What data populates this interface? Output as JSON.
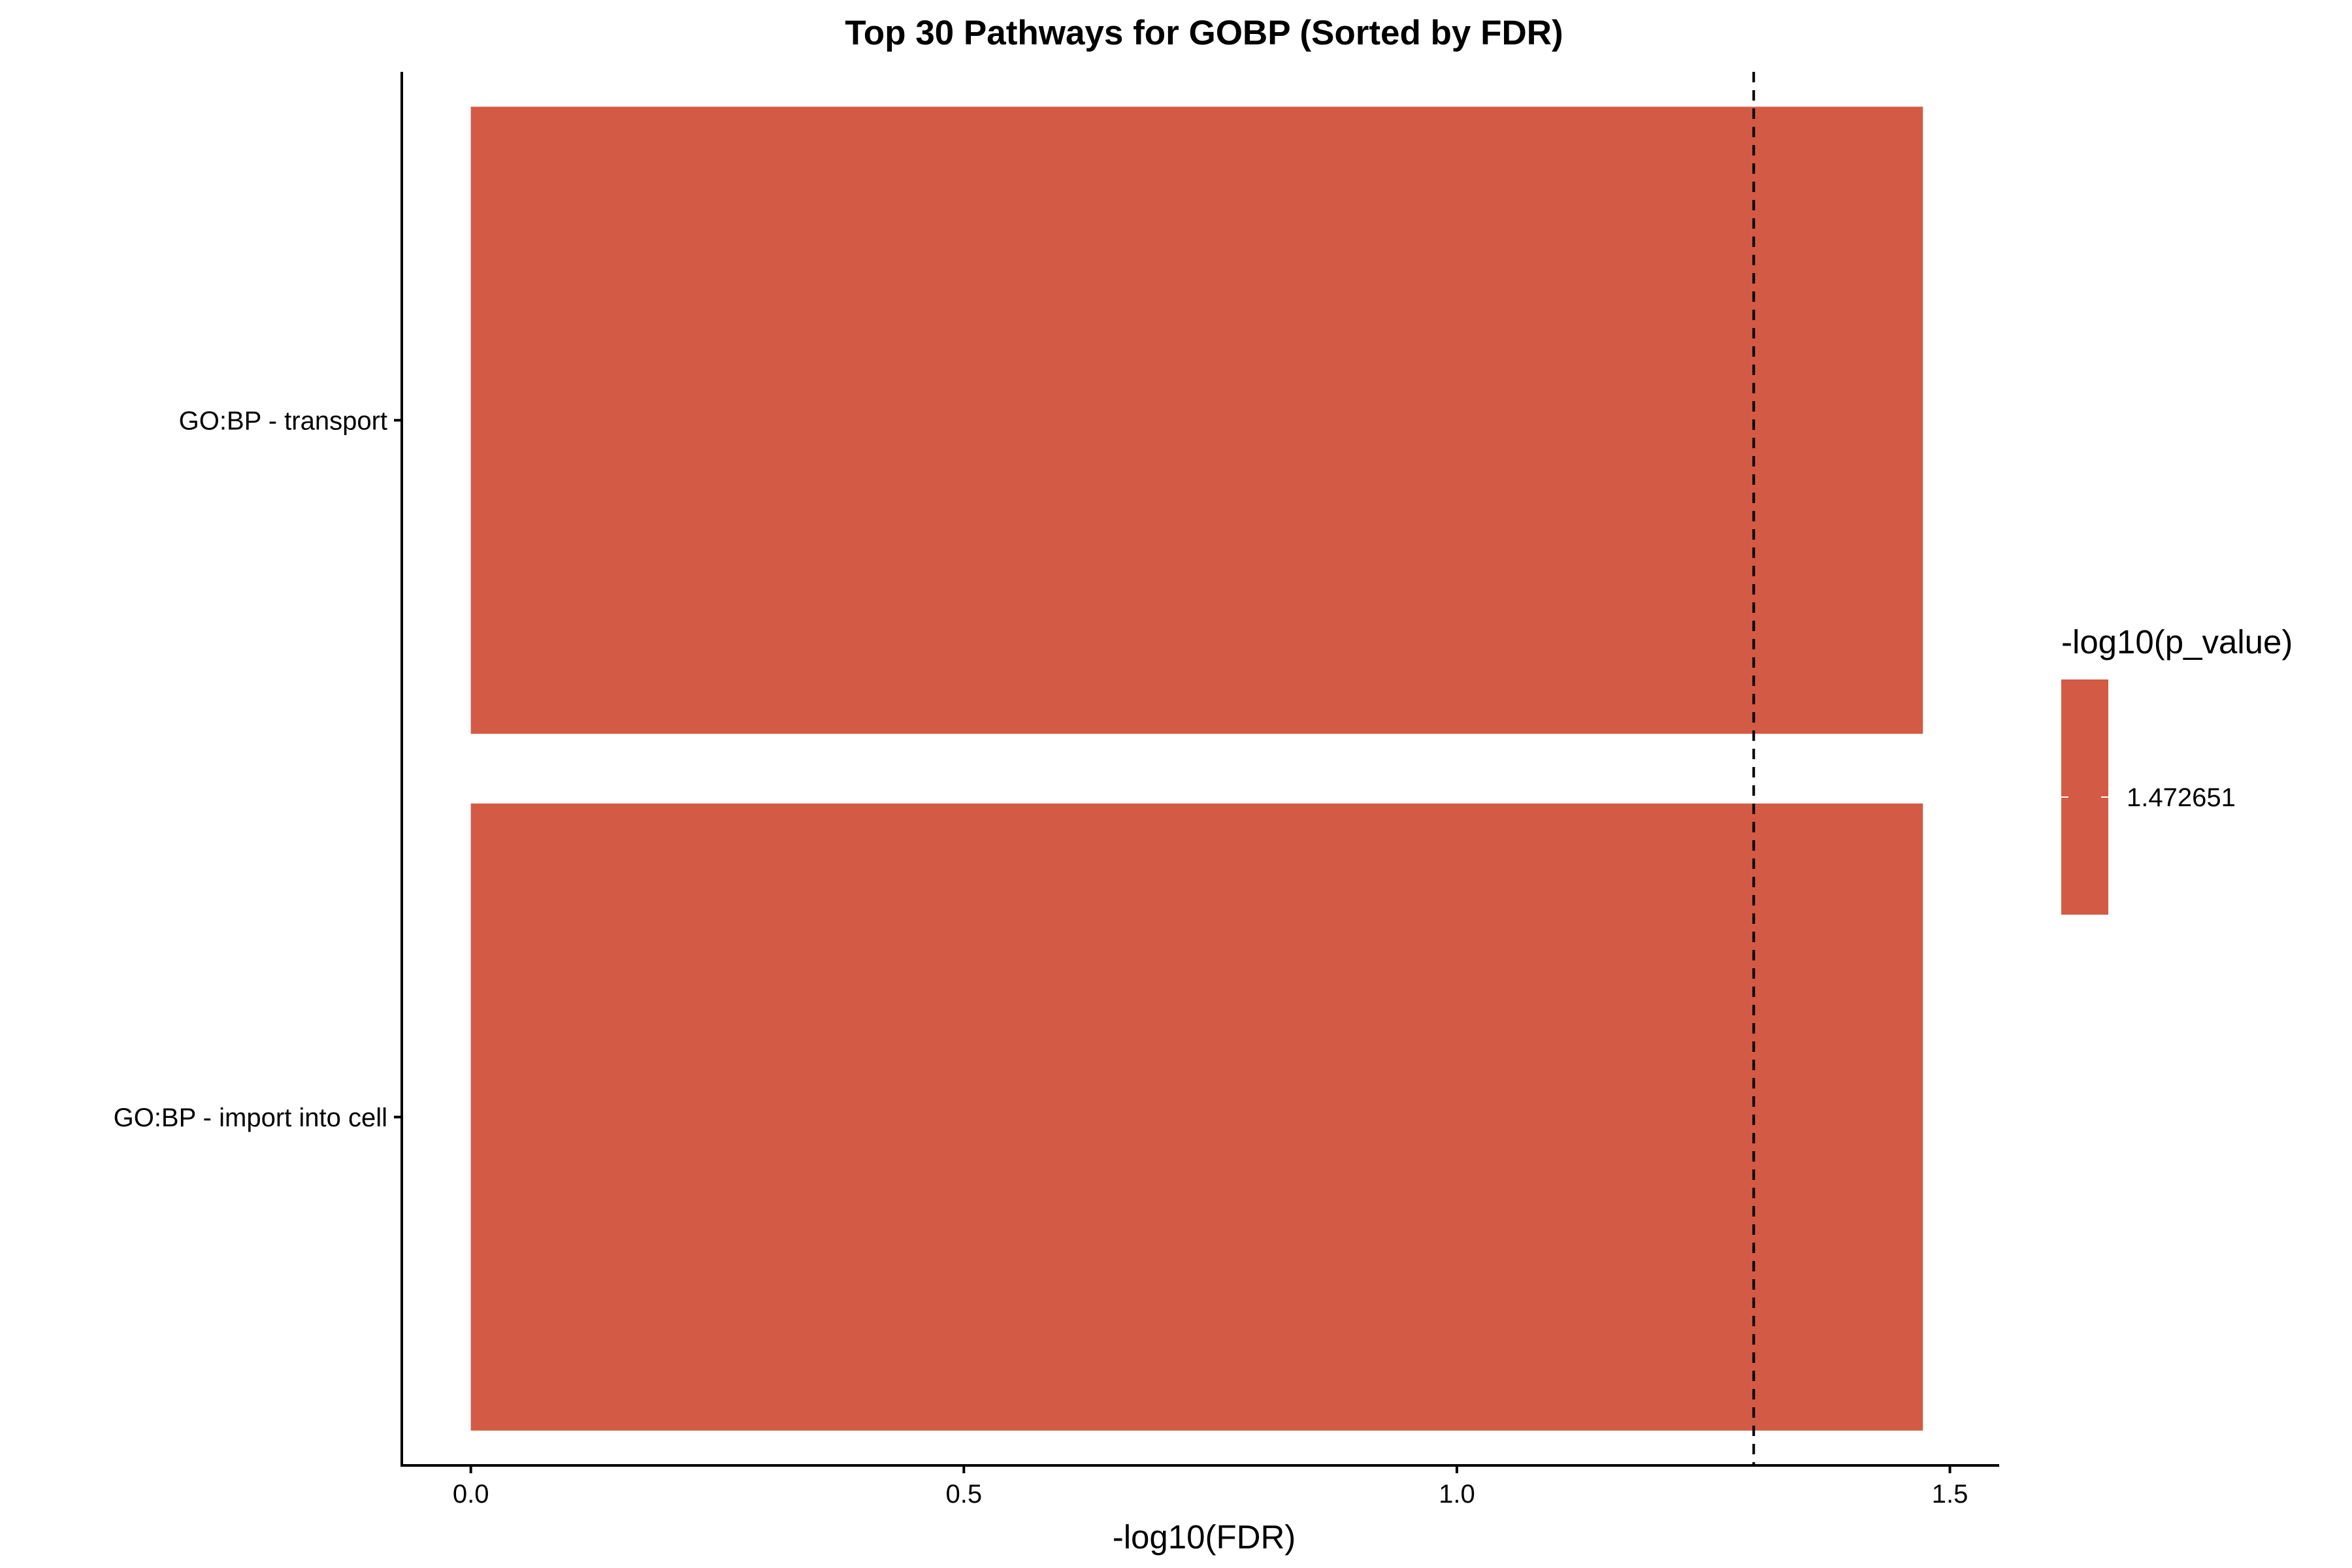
{
  "chart_data": {
    "type": "bar",
    "orientation": "horizontal",
    "title": "Top 30 Pathways for GOBP (Sorted by FDR)",
    "xlabel": "-log10(FDR)",
    "ylabel": "",
    "categories": [
      "GO:BP - transport",
      "GO:BP - import into cell"
    ],
    "values": [
      1.472651,
      1.472651
    ],
    "xlim": [
      -0.07,
      1.55
    ],
    "xticks": [
      "0.0",
      "0.5",
      "1.0",
      "1.5"
    ],
    "threshold_line": 1.30103,
    "legend": {
      "title": "-log10(p_value)",
      "label": "1.472651",
      "placement": "right"
    },
    "bar_color": "#D35A44",
    "grid": false
  }
}
